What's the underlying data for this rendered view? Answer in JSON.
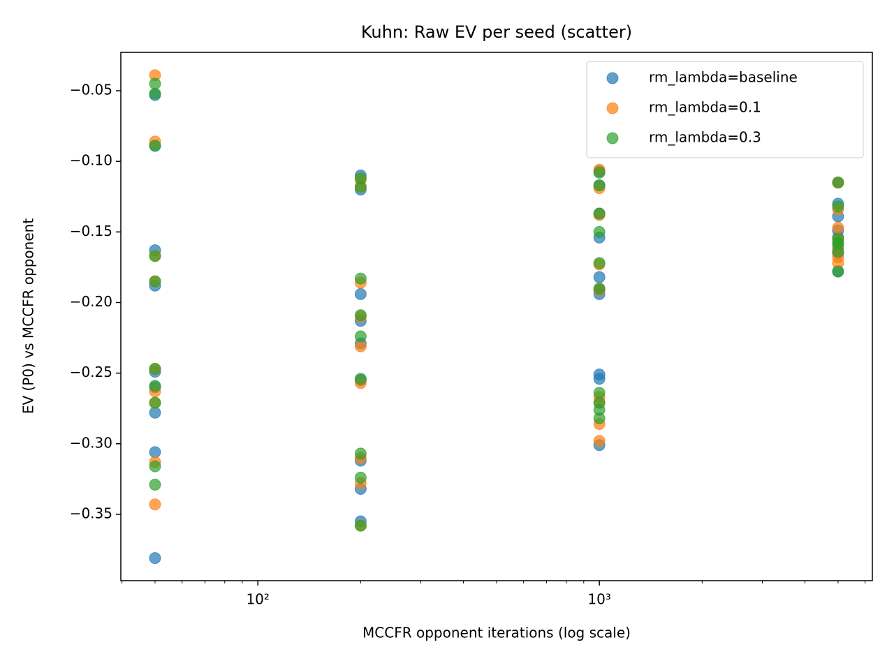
{
  "chart_data": {
    "type": "scatter",
    "title": "Kuhn: Raw EV per seed (scatter)",
    "x_label": "MCCFR opponent iterations (log scale)",
    "y_label": "EV (P0) vs MCCFR opponent",
    "xscale": "log",
    "xlim": [
      39.7,
      6300
    ],
    "ylim": [
      -0.397,
      -0.0228
    ],
    "xticks": [
      {
        "value": 100,
        "label": "10²"
      },
      {
        "value": 1000,
        "label": "10³"
      }
    ],
    "xminorticks": [
      40,
      50,
      60,
      70,
      80,
      90,
      200,
      300,
      400,
      500,
      600,
      700,
      800,
      900,
      2000,
      3000,
      4000,
      5000,
      6000
    ],
    "yticks": [
      {
        "value": -0.05,
        "label": "−0.05"
      },
      {
        "value": -0.1,
        "label": "−0.10"
      },
      {
        "value": -0.15,
        "label": "−0.15"
      },
      {
        "value": -0.2,
        "label": "−0.20"
      },
      {
        "value": -0.25,
        "label": "−0.25"
      },
      {
        "value": -0.3,
        "label": "−0.30"
      },
      {
        "value": -0.35,
        "label": "−0.35"
      }
    ],
    "legend": "upper right",
    "alpha": 0.7,
    "series": [
      {
        "name": "rm_lambda=baseline",
        "color": "#1f77b4",
        "x": [
          50,
          50,
          50,
          50,
          50,
          50,
          50,
          50,
          50,
          200,
          200,
          200,
          200,
          200,
          200,
          200,
          200,
          200,
          1000,
          1000,
          1000,
          1000,
          1000,
          1000,
          1000,
          1000,
          1000,
          1000,
          5000,
          5000,
          5000,
          5000,
          5000,
          5000,
          5000,
          5000
        ],
        "values": [
          -0.053,
          -0.089,
          -0.163,
          -0.188,
          -0.249,
          -0.26,
          -0.278,
          -0.306,
          -0.381,
          -0.11,
          -0.12,
          -0.194,
          -0.213,
          -0.229,
          -0.255,
          -0.312,
          -0.332,
          -0.355,
          -0.107,
          -0.117,
          -0.137,
          -0.154,
          -0.182,
          -0.191,
          -0.194,
          -0.251,
          -0.254,
          -0.301,
          -0.115,
          -0.13,
          -0.139,
          -0.149,
          -0.154,
          -0.161,
          -0.165,
          -0.178
        ]
      },
      {
        "name": "rm_lambda=0.1",
        "color": "#ff7f0e",
        "x": [
          50,
          50,
          50,
          50,
          50,
          50,
          50,
          50,
          50,
          200,
          200,
          200,
          200,
          200,
          200,
          200,
          200,
          200,
          1000,
          1000,
          1000,
          1000,
          1000,
          1000,
          1000,
          1000,
          1000,
          5000,
          5000,
          5000,
          5000,
          5000,
          5000,
          5000
        ],
        "values": [
          -0.039,
          -0.086,
          -0.167,
          -0.185,
          -0.247,
          -0.263,
          -0.271,
          -0.313,
          -0.343,
          -0.113,
          -0.118,
          -0.186,
          -0.21,
          -0.231,
          -0.257,
          -0.31,
          -0.328,
          -0.358,
          -0.106,
          -0.119,
          -0.138,
          -0.173,
          -0.191,
          -0.267,
          -0.271,
          -0.286,
          -0.298,
          -0.115,
          -0.134,
          -0.147,
          -0.155,
          -0.162,
          -0.168,
          -0.172
        ]
      },
      {
        "name": "rm_lambda=0.3",
        "color": "#2ca02c",
        "x": [
          50,
          50,
          50,
          50,
          50,
          50,
          50,
          50,
          50,
          50,
          200,
          200,
          200,
          200,
          200,
          200,
          200,
          200,
          200,
          1000,
          1000,
          1000,
          1000,
          1000,
          1000,
          1000,
          1000,
          1000,
          1000,
          5000,
          5000,
          5000,
          5000,
          5000,
          5000,
          5000
        ],
        "values": [
          -0.045,
          -0.052,
          -0.089,
          -0.167,
          -0.185,
          -0.247,
          -0.259,
          -0.271,
          -0.316,
          -0.329,
          -0.112,
          -0.118,
          -0.183,
          -0.209,
          -0.224,
          -0.254,
          -0.307,
          -0.324,
          -0.358,
          -0.108,
          -0.117,
          -0.137,
          -0.15,
          -0.172,
          -0.19,
          -0.264,
          -0.271,
          -0.276,
          -0.282,
          -0.115,
          -0.132,
          -0.155,
          -0.158,
          -0.158,
          -0.164,
          -0.178
        ]
      }
    ]
  }
}
